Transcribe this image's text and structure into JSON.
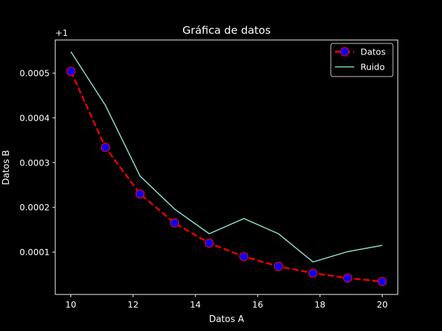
{
  "chart_data": {
    "type": "line",
    "title": "Gráfica de datos",
    "xlabel": "Datos A",
    "ylabel": "Datos B",
    "y_offset_label": "+1",
    "xlim": [
      9.5,
      20.5
    ],
    "ylim": [
      5.3e-06,
      0.000574
    ],
    "x_ticks": [
      10,
      12,
      14,
      16,
      18,
      20
    ],
    "x_tick_labels": [
      "10",
      "12",
      "14",
      "16",
      "18",
      "20"
    ],
    "y_ticks": [
      0.0001,
      0.0002,
      0.0003,
      0.0004,
      0.0005
    ],
    "y_tick_labels": [
      "0.0001",
      "0.0002",
      "0.0003",
      "0.0004",
      "0.0005"
    ],
    "grid": false,
    "legend_position": "upper right",
    "background": "#000000",
    "x": [
      10,
      11.111,
      12.222,
      13.333,
      14.444,
      15.556,
      16.667,
      17.778,
      18.889,
      20
    ],
    "series": [
      {
        "name": "Datos",
        "values": [
          0.000504,
          0.000334,
          0.00023,
          0.000165,
          0.00012,
          9e-05,
          6.8e-05,
          5.3e-05,
          4.2e-05,
          3.4e-05
        ],
        "style": "dashed",
        "color": "#ff0000",
        "marker": "circle",
        "marker_face": "#0000ff",
        "marker_edge": "#ff0000"
      },
      {
        "name": "Ruido",
        "values": [
          0.000548,
          0.000428,
          0.00027,
          0.000196,
          0.000141,
          0.000175,
          0.000141,
          7.8e-05,
          0.000101,
          0.000115
        ],
        "style": "solid",
        "color": "#8dd3c7"
      }
    ]
  }
}
